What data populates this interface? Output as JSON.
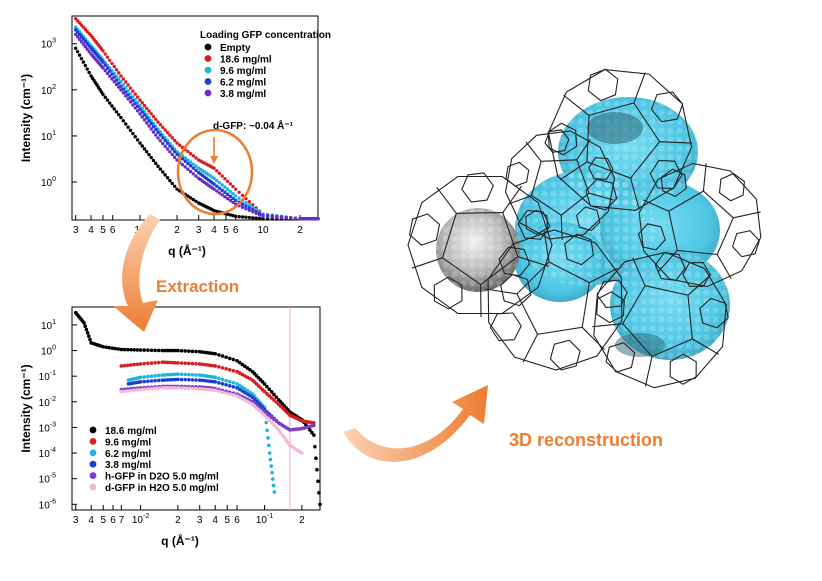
{
  "colors": {
    "empty": "#000000",
    "c186": "#d81e1e",
    "c96": "#1fb3e0",
    "c62": "#1a3fcf",
    "c38": "#6a2bc9",
    "hgfp": "#7a3fc6",
    "dgfp": "#f4b6d8",
    "accent": "#ed7d31",
    "cyan": "#39c6e6",
    "gray": "#9a9a9a"
  },
  "labels": {
    "extraction": "Extraction",
    "reconstruction": "3D reconstruction"
  },
  "chart_data": [
    {
      "type": "scatter",
      "title": "Loading GFP concentration",
      "xlabel": "q (Å⁻¹)",
      "ylabel": "Intensity (cm⁻¹)",
      "xscale": "log",
      "yscale": "log",
      "xlim": [
        0.0028,
        0.28
      ],
      "ylim": [
        0.15,
        4000
      ],
      "x_ticks": [
        {
          "v": 0.003,
          "label": "3"
        },
        {
          "v": 0.004,
          "label": "4"
        },
        {
          "v": 0.005,
          "label": "5"
        },
        {
          "v": 0.006,
          "label": "6"
        },
        {
          "v": 0.01,
          "label": "10"
        },
        {
          "v": 0.02,
          "label": "2"
        },
        {
          "v": 0.03,
          "label": "3"
        },
        {
          "v": 0.04,
          "label": "4"
        },
        {
          "v": 0.05,
          "label": "5"
        },
        {
          "v": 0.06,
          "label": "6"
        },
        {
          "v": 0.1,
          "label": "10"
        },
        {
          "v": 0.2,
          "label": "2"
        }
      ],
      "y_ticks": [
        {
          "v": 1,
          "label": "10",
          "exp": "0"
        },
        {
          "v": 10,
          "label": "10",
          "exp": "1"
        },
        {
          "v": 100,
          "label": "10",
          "exp": "2"
        },
        {
          "v": 1000,
          "label": "10",
          "exp": "3"
        }
      ],
      "annotation": {
        "text": "d-GFP: ~0.04 Å⁻¹",
        "q": 0.04
      },
      "series": [
        {
          "name": "Empty",
          "x": [
            0.003,
            0.004,
            0.005,
            0.007,
            0.01,
            0.014,
            0.02,
            0.03,
            0.04,
            0.06,
            0.1,
            0.2,
            0.28
          ],
          "y": [
            800,
            200,
            80,
            25,
            7,
            2.2,
            0.7,
            0.35,
            0.24,
            0.18,
            0.16,
            0.16,
            0.16
          ]
        },
        {
          "name": "18.6 mg/ml",
          "x": [
            0.003,
            0.004,
            0.005,
            0.007,
            0.01,
            0.014,
            0.02,
            0.03,
            0.04,
            0.06,
            0.1,
            0.2,
            0.28
          ],
          "y": [
            3500,
            1500,
            700,
            200,
            60,
            20,
            7,
            3,
            2,
            0.7,
            0.2,
            0.16,
            0.16
          ]
        },
        {
          "name": "9.6 mg/ml",
          "x": [
            0.003,
            0.004,
            0.005,
            0.007,
            0.01,
            0.014,
            0.02,
            0.03,
            0.04,
            0.06,
            0.1,
            0.2,
            0.28
          ],
          "y": [
            2300,
            900,
            450,
            150,
            45,
            14,
            4.5,
            2,
            1.2,
            0.5,
            0.2,
            0.16,
            0.16
          ]
        },
        {
          "name": "6.2 mg/ml",
          "x": [
            0.003,
            0.004,
            0.005,
            0.007,
            0.01,
            0.014,
            0.02,
            0.03,
            0.04,
            0.06,
            0.1,
            0.2,
            0.28
          ],
          "y": [
            2000,
            800,
            400,
            120,
            38,
            12,
            4,
            1.6,
            0.9,
            0.4,
            0.19,
            0.16,
            0.16
          ]
        },
        {
          "name": "3.8 mg/ml",
          "x": [
            0.003,
            0.004,
            0.005,
            0.007,
            0.01,
            0.014,
            0.02,
            0.03,
            0.04,
            0.06,
            0.1,
            0.2,
            0.28
          ],
          "y": [
            1600,
            600,
            300,
            100,
            30,
            9,
            3,
            1.2,
            0.7,
            0.33,
            0.18,
            0.16,
            0.16
          ]
        }
      ]
    },
    {
      "type": "scatter",
      "xlabel": "q (Å⁻¹)",
      "ylabel": "Intensity (cm⁻¹)",
      "xscale": "log",
      "yscale": "log",
      "xlim": [
        0.0028,
        0.28
      ],
      "ylim": [
        6e-07,
        50
      ],
      "x_ticks": [
        {
          "v": 0.003,
          "label": "3"
        },
        {
          "v": 0.004,
          "label": "4"
        },
        {
          "v": 0.005,
          "label": "5"
        },
        {
          "v": 0.006,
          "label": "6"
        },
        {
          "v": 0.007,
          "label": "7"
        },
        {
          "v": 0.01,
          "label": "10",
          "exp": "-2"
        },
        {
          "v": 0.02,
          "label": "2"
        },
        {
          "v": 0.03,
          "label": "3"
        },
        {
          "v": 0.04,
          "label": "4"
        },
        {
          "v": 0.05,
          "label": "5"
        },
        {
          "v": 0.06,
          "label": "6"
        },
        {
          "v": 0.1,
          "label": "10",
          "exp": "-1"
        },
        {
          "v": 0.2,
          "label": "2"
        }
      ],
      "y_ticks": [
        {
          "v": 1e-06,
          "label": "10",
          "exp": "-6"
        },
        {
          "v": 1e-05,
          "label": "10",
          "exp": "-5"
        },
        {
          "v": 0.0001,
          "label": "10",
          "exp": "-4"
        },
        {
          "v": 0.001,
          "label": "10",
          "exp": "-3"
        },
        {
          "v": 0.01,
          "label": "10",
          "exp": "-2"
        },
        {
          "v": 0.1,
          "label": "10",
          "exp": "-1"
        },
        {
          "v": 1,
          "label": "10",
          "exp": "0"
        },
        {
          "v": 10,
          "label": "10",
          "exp": "1"
        }
      ],
      "vline_q": 0.16,
      "series": [
        {
          "name": "18.6 mg/ml",
          "x": [
            0.003,
            0.0035,
            0.004,
            0.005,
            0.007,
            0.01,
            0.015,
            0.02,
            0.03,
            0.04,
            0.06,
            0.08,
            0.1,
            0.13,
            0.16,
            0.2,
            0.25,
            0.28
          ],
          "y": [
            30,
            12,
            2,
            1.4,
            1.1,
            1.05,
            1,
            1,
            0.9,
            0.75,
            0.4,
            0.15,
            0.05,
            0.012,
            0.004,
            0.002,
            0.0005,
            1e-06
          ]
        },
        {
          "name": "9.6 mg/ml",
          "x": [
            0.007,
            0.01,
            0.015,
            0.02,
            0.03,
            0.04,
            0.06,
            0.08,
            0.1,
            0.13,
            0.16,
            0.2,
            0.25
          ],
          "y": [
            0.25,
            0.3,
            0.35,
            0.33,
            0.3,
            0.25,
            0.15,
            0.07,
            0.025,
            0.008,
            0.003,
            0.0018,
            0.0015
          ]
        },
        {
          "name": "6.2 mg/ml",
          "x": [
            0.008,
            0.01,
            0.015,
            0.02,
            0.03,
            0.04,
            0.06,
            0.08,
            0.1,
            0.11,
            0.12
          ],
          "y": [
            0.07,
            0.09,
            0.11,
            0.12,
            0.11,
            0.09,
            0.05,
            0.02,
            0.006,
            0.0001,
            3e-06
          ]
        },
        {
          "name": "3.8 mg/ml",
          "x": [
            0.008,
            0.01,
            0.015,
            0.02,
            0.03,
            0.04,
            0.06,
            0.08,
            0.1,
            0.13
          ],
          "y": [
            0.05,
            0.06,
            0.07,
            0.075,
            0.07,
            0.06,
            0.035,
            0.015,
            0.005,
            0.0015
          ]
        },
        {
          "name": "h-GFP in D2O 5.0 mg/ml",
          "x": [
            0.007,
            0.01,
            0.015,
            0.02,
            0.03,
            0.04,
            0.06,
            0.08,
            0.1,
            0.13,
            0.16,
            0.2,
            0.25
          ],
          "y": [
            0.03,
            0.035,
            0.04,
            0.04,
            0.038,
            0.033,
            0.02,
            0.01,
            0.004,
            0.0015,
            0.0008,
            0.0009,
            0.0012
          ]
        },
        {
          "name": "d-GFP in H2O 5.0 mg/ml",
          "x": [
            0.007,
            0.01,
            0.015,
            0.02,
            0.03,
            0.04,
            0.06,
            0.08,
            0.1,
            0.13,
            0.16,
            0.2
          ],
          "y": [
            0.025,
            0.03,
            0.035,
            0.035,
            0.032,
            0.028,
            0.017,
            0.008,
            0.003,
            0.0008,
            0.0002,
            0.0001
          ]
        }
      ]
    }
  ]
}
